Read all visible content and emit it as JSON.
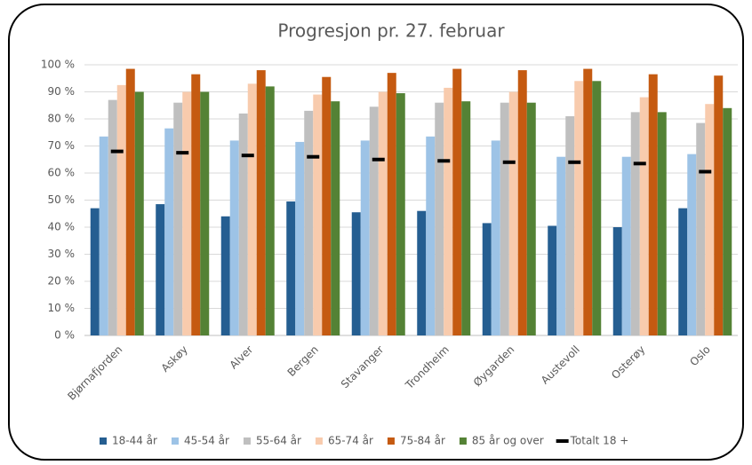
{
  "chart_data": {
    "type": "bar",
    "title": "Progresjon pr. 27. februar",
    "categories": [
      "Bjørnafjorden",
      "Askøy",
      "Alver",
      "Bergen",
      "Stavanger",
      "Trondheim",
      "Øygarden",
      "Austevoll",
      "Osterøy",
      "Oslo"
    ],
    "series": [
      {
        "name": "18-44 år",
        "color": "#255e91",
        "type": "bar",
        "values": [
          47,
          48.5,
          44,
          49.5,
          45.5,
          46,
          41.5,
          40.5,
          40,
          47
        ]
      },
      {
        "name": "45-54 år",
        "color": "#9dc3e6",
        "type": "bar",
        "values": [
          73.5,
          76.5,
          72,
          71.5,
          72,
          73.5,
          72,
          66,
          66,
          67
        ]
      },
      {
        "name": "55-64 år",
        "color": "#bfbfbf",
        "type": "bar",
        "values": [
          87,
          86,
          82,
          83,
          84.5,
          86,
          86,
          81,
          82.5,
          78.5
        ]
      },
      {
        "name": "65-74 år",
        "color": "#f8cbad",
        "type": "bar",
        "values": [
          92.5,
          90,
          93,
          89,
          90,
          91.5,
          90,
          94,
          88,
          85.5
        ]
      },
      {
        "name": "75-84 år",
        "color": "#c55a11",
        "type": "bar",
        "values": [
          98.5,
          96.5,
          98,
          95.5,
          97,
          98.5,
          98,
          98.5,
          96.5,
          96
        ]
      },
      {
        "name": "85 år og over",
        "color": "#548235",
        "type": "bar",
        "values": [
          90,
          90,
          92,
          86.5,
          89.5,
          86.5,
          86,
          94,
          82.5,
          84
        ]
      },
      {
        "name": "Totalt 18 +",
        "color": "#000000",
        "type": "dash",
        "values": [
          68,
          67.5,
          66.5,
          66,
          65,
          64.5,
          64,
          64,
          63.5,
          60.5
        ]
      }
    ],
    "ylim": [
      0,
      100
    ],
    "yticks": [
      {
        "value": 0,
        "label": "0 %"
      },
      {
        "value": 10,
        "label": "10 %"
      },
      {
        "value": 20,
        "label": "20 %"
      },
      {
        "value": 30,
        "label": "30 %"
      },
      {
        "value": 40,
        "label": "40 %"
      },
      {
        "value": 50,
        "label": "50 %"
      },
      {
        "value": 60,
        "label": "60 %"
      },
      {
        "value": 70,
        "label": "70 %"
      },
      {
        "value": 80,
        "label": "80 %"
      },
      {
        "value": 90,
        "label": "90 %"
      },
      {
        "value": 100,
        "label": "100 %"
      }
    ],
    "grid": true
  }
}
